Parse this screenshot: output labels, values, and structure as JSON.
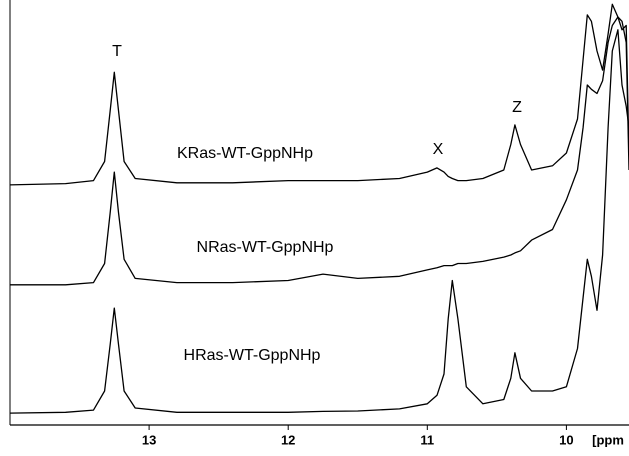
{
  "chart_data": {
    "type": "line",
    "x_label": "[ppm",
    "x": [
      14.0,
      13.6,
      13.4,
      13.32,
      13.28,
      13.25,
      13.22,
      13.18,
      13.1,
      12.8,
      12.4,
      12.0,
      11.75,
      11.5,
      11.2,
      11.0,
      10.93,
      10.88,
      10.85,
      10.82,
      10.78,
      10.72,
      10.6,
      10.45,
      10.4,
      10.37,
      10.33,
      10.25,
      10.1,
      10.0,
      9.92,
      9.88,
      9.85,
      9.82,
      9.78,
      9.74,
      9.7,
      9.67,
      9.63,
      9.6,
      9.57,
      9.55
    ],
    "series": [
      {
        "name": "KRas-WT-GppNHp",
        "color": "#000000",
        "values": [
          56.5,
          56.8,
          57.5,
          62,
          74,
          83,
          74,
          62,
          58,
          57,
          57,
          57.5,
          57.5,
          57.5,
          58,
          59.5,
          60.5,
          59.5,
          58.5,
          58,
          57.5,
          57.5,
          58,
          60,
          66,
          70.6,
          66,
          60,
          61,
          64,
          72,
          86,
          96.5,
          95,
          88,
          83.5,
          92,
          99,
          96,
          93,
          94,
          63.5
        ]
      },
      {
        "name": "NRas-WT-GppNHp",
        "color": "#000000",
        "values": [
          33,
          33,
          33.5,
          38,
          50,
          59.5,
          50,
          39,
          34.5,
          33.5,
          33.5,
          34,
          35.5,
          34.5,
          35,
          36.5,
          37,
          37.5,
          37.5,
          37.5,
          38,
          38,
          38.5,
          39.5,
          40,
          40.5,
          41,
          43.5,
          46,
          53,
          60,
          70,
          80,
          79,
          78,
          81,
          90,
          94,
          96,
          95,
          90,
          60
        ]
      },
      {
        "name": "HRas-WT-GppNHp",
        "color": "#000000",
        "values": [
          2.8,
          3,
          3.5,
          8,
          19,
          27.5,
          19,
          8,
          4,
          3,
          3,
          3,
          3.2,
          3.3,
          3.8,
          5,
          7,
          12,
          25,
          34,
          25,
          9,
          5,
          6,
          11,
          17,
          11,
          8,
          8,
          9,
          18,
          30,
          39,
          35,
          27,
          40,
          70,
          88,
          93,
          80,
          75,
          70
        ]
      }
    ],
    "annotations": [
      "T",
      "X",
      "Z"
    ],
    "xlim": [
      14.0,
      9.55
    ],
    "xticks": [
      13,
      12,
      11,
      10
    ],
    "ylim": [
      0,
      100
    ]
  }
}
